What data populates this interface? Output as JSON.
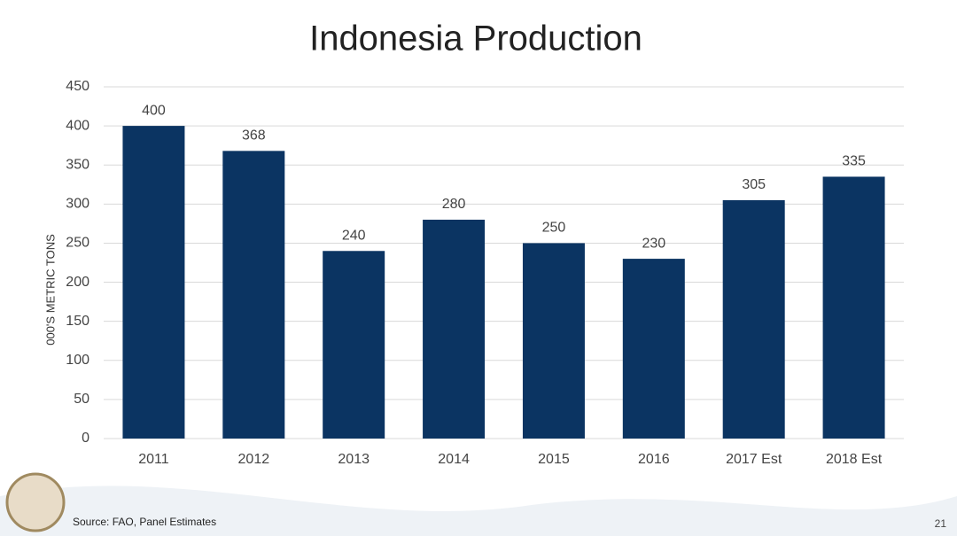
{
  "chart_data": {
    "type": "bar",
    "title": "Indonesia Production",
    "y_label": "000'S METRIC TONS",
    "categories": [
      "2011",
      "2012",
      "2013",
      "2014",
      "2015",
      "2016",
      "2017 Est",
      "2018 Est"
    ],
    "values": [
      400,
      368,
      240,
      280,
      250,
      230,
      305,
      335
    ],
    "color": "#0b3462",
    "ylim": [
      0,
      450
    ],
    "yticks": [
      0,
      50,
      100,
      150,
      200,
      250,
      300,
      350,
      400,
      450
    ],
    "grid": true,
    "source": "Source: FAO, Panel Estimates"
  },
  "page_number": 21
}
